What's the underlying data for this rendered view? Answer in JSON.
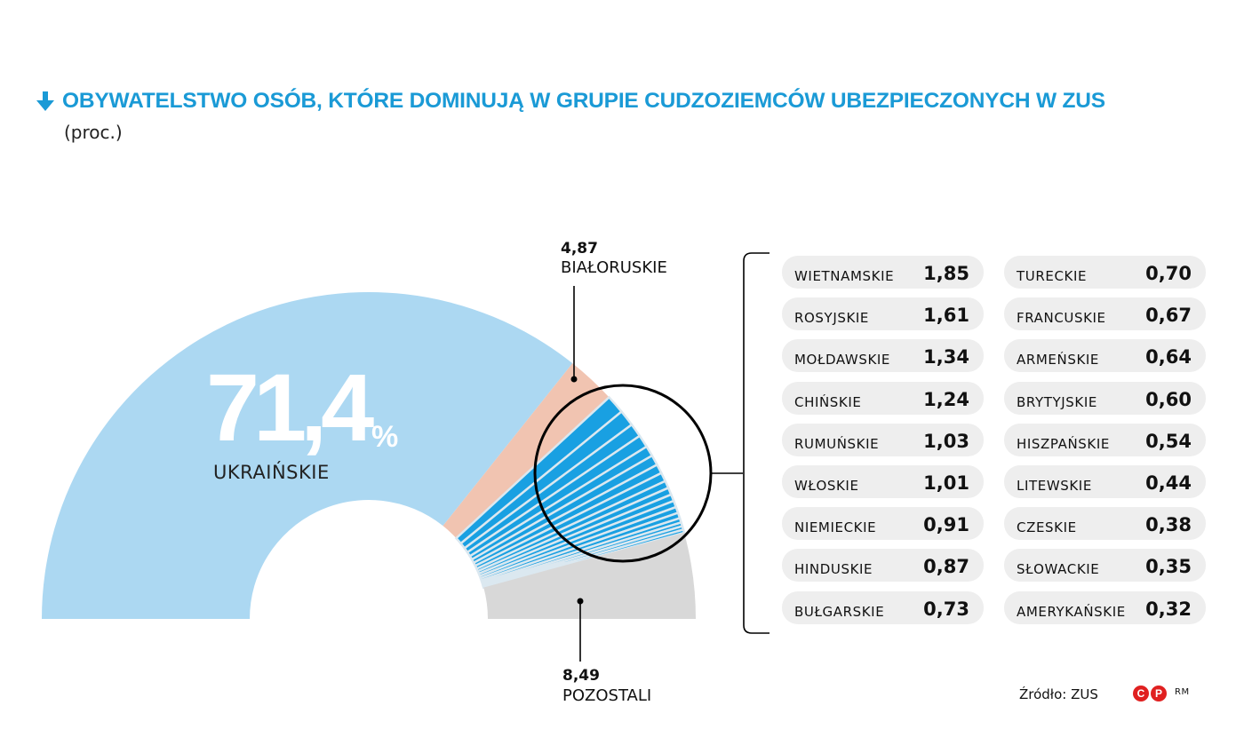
{
  "title": "OBYWATELSTWO OSÓB, KTÓRE DOMINUJĄ W GRUPIE CUDZOZIEMCÓW UBEZPIECZONYCH W ZUS",
  "subtitle": "(proc.)",
  "source": "Źródło: ZUS",
  "logo_letters": [
    "C",
    "P"
  ],
  "logo_suffix": "RM",
  "icons": {
    "title_marker": "arrow-down-icon"
  },
  "colors": {
    "title": "#1a9ad6",
    "ukraine": "#acd8f2",
    "belarus": "#f1c4b1",
    "others_small": "#19a0e2",
    "others_small_alt": "#dbe8f0",
    "remaining": "#d8d8d8",
    "pill_bg": "#eeeeee",
    "logo": "#e02020"
  },
  "highlight": {
    "value": "71,4",
    "unit": "%",
    "label": "UKRAIŃSKIE"
  },
  "callouts": {
    "belarus": {
      "value": "4,87",
      "label": "BIAŁORUSKIE"
    },
    "remaining": {
      "value": "8,49",
      "label": "POZOSTALI"
    }
  },
  "chart_data": {
    "type": "pie",
    "variant": "half-donut",
    "unit": "proc.",
    "slices": [
      {
        "label": "UKRAIŃSKIE",
        "value": 71.4
      },
      {
        "label": "BIAŁORUSKIE",
        "value": 4.87
      },
      {
        "label": "WIETNAMSKIE",
        "value": 1.85
      },
      {
        "label": "ROSYJSKIE",
        "value": 1.61
      },
      {
        "label": "MOŁDAWSKIE",
        "value": 1.34
      },
      {
        "label": "CHIŃSKIE",
        "value": 1.24
      },
      {
        "label": "RUMUŃSKIE",
        "value": 1.03
      },
      {
        "label": "WŁOSKIE",
        "value": 1.01
      },
      {
        "label": "NIEMIECKIE",
        "value": 0.91
      },
      {
        "label": "HINDUSKIE",
        "value": 0.87
      },
      {
        "label": "BUŁGARSKIE",
        "value": 0.73
      },
      {
        "label": "TURECKIE",
        "value": 0.7
      },
      {
        "label": "FRANCUSKIE",
        "value": 0.67
      },
      {
        "label": "ARMEŃSKIE",
        "value": 0.64
      },
      {
        "label": "BRYTYJSKIE",
        "value": 0.6
      },
      {
        "label": "HISZPAŃSKIE",
        "value": 0.54
      },
      {
        "label": "LITEWSKIE",
        "value": 0.44
      },
      {
        "label": "CZESKIE",
        "value": 0.38
      },
      {
        "label": "SŁOWACKIE",
        "value": 0.35
      },
      {
        "label": "AMERYKAŃSKIE",
        "value": 0.32
      },
      {
        "label": "POZOSTALI",
        "value": 8.49
      }
    ]
  },
  "table": {
    "left": [
      {
        "name": "WIETNAMSKIE",
        "value": "1,85"
      },
      {
        "name": "ROSYJSKIE",
        "value": "1,61"
      },
      {
        "name": "MOŁDAWSKIE",
        "value": "1,34"
      },
      {
        "name": "CHIŃSKIE",
        "value": "1,24"
      },
      {
        "name": "RUMUŃSKIE",
        "value": "1,03"
      },
      {
        "name": "WŁOSKIE",
        "value": "1,01"
      },
      {
        "name": "NIEMIECKIE",
        "value": "0,91"
      },
      {
        "name": "HINDUSKIE",
        "value": "0,87"
      },
      {
        "name": "BUŁGARSKIE",
        "value": "0,73"
      }
    ],
    "right": [
      {
        "name": "TURECKIE",
        "value": "0,70"
      },
      {
        "name": "FRANCUSKIE",
        "value": "0,67"
      },
      {
        "name": "ARMEŃSKIE",
        "value": "0,64"
      },
      {
        "name": "BRYTYJSKIE",
        "value": "0,60"
      },
      {
        "name": "HISZPAŃSKIE",
        "value": "0,54"
      },
      {
        "name": "LITEWSKIE",
        "value": "0,44"
      },
      {
        "name": "CZESKIE",
        "value": "0,38"
      },
      {
        "name": "SŁOWACKIE",
        "value": "0,35"
      },
      {
        "name": "AMERYKAŃSKIE",
        "value": "0,32"
      }
    ]
  }
}
